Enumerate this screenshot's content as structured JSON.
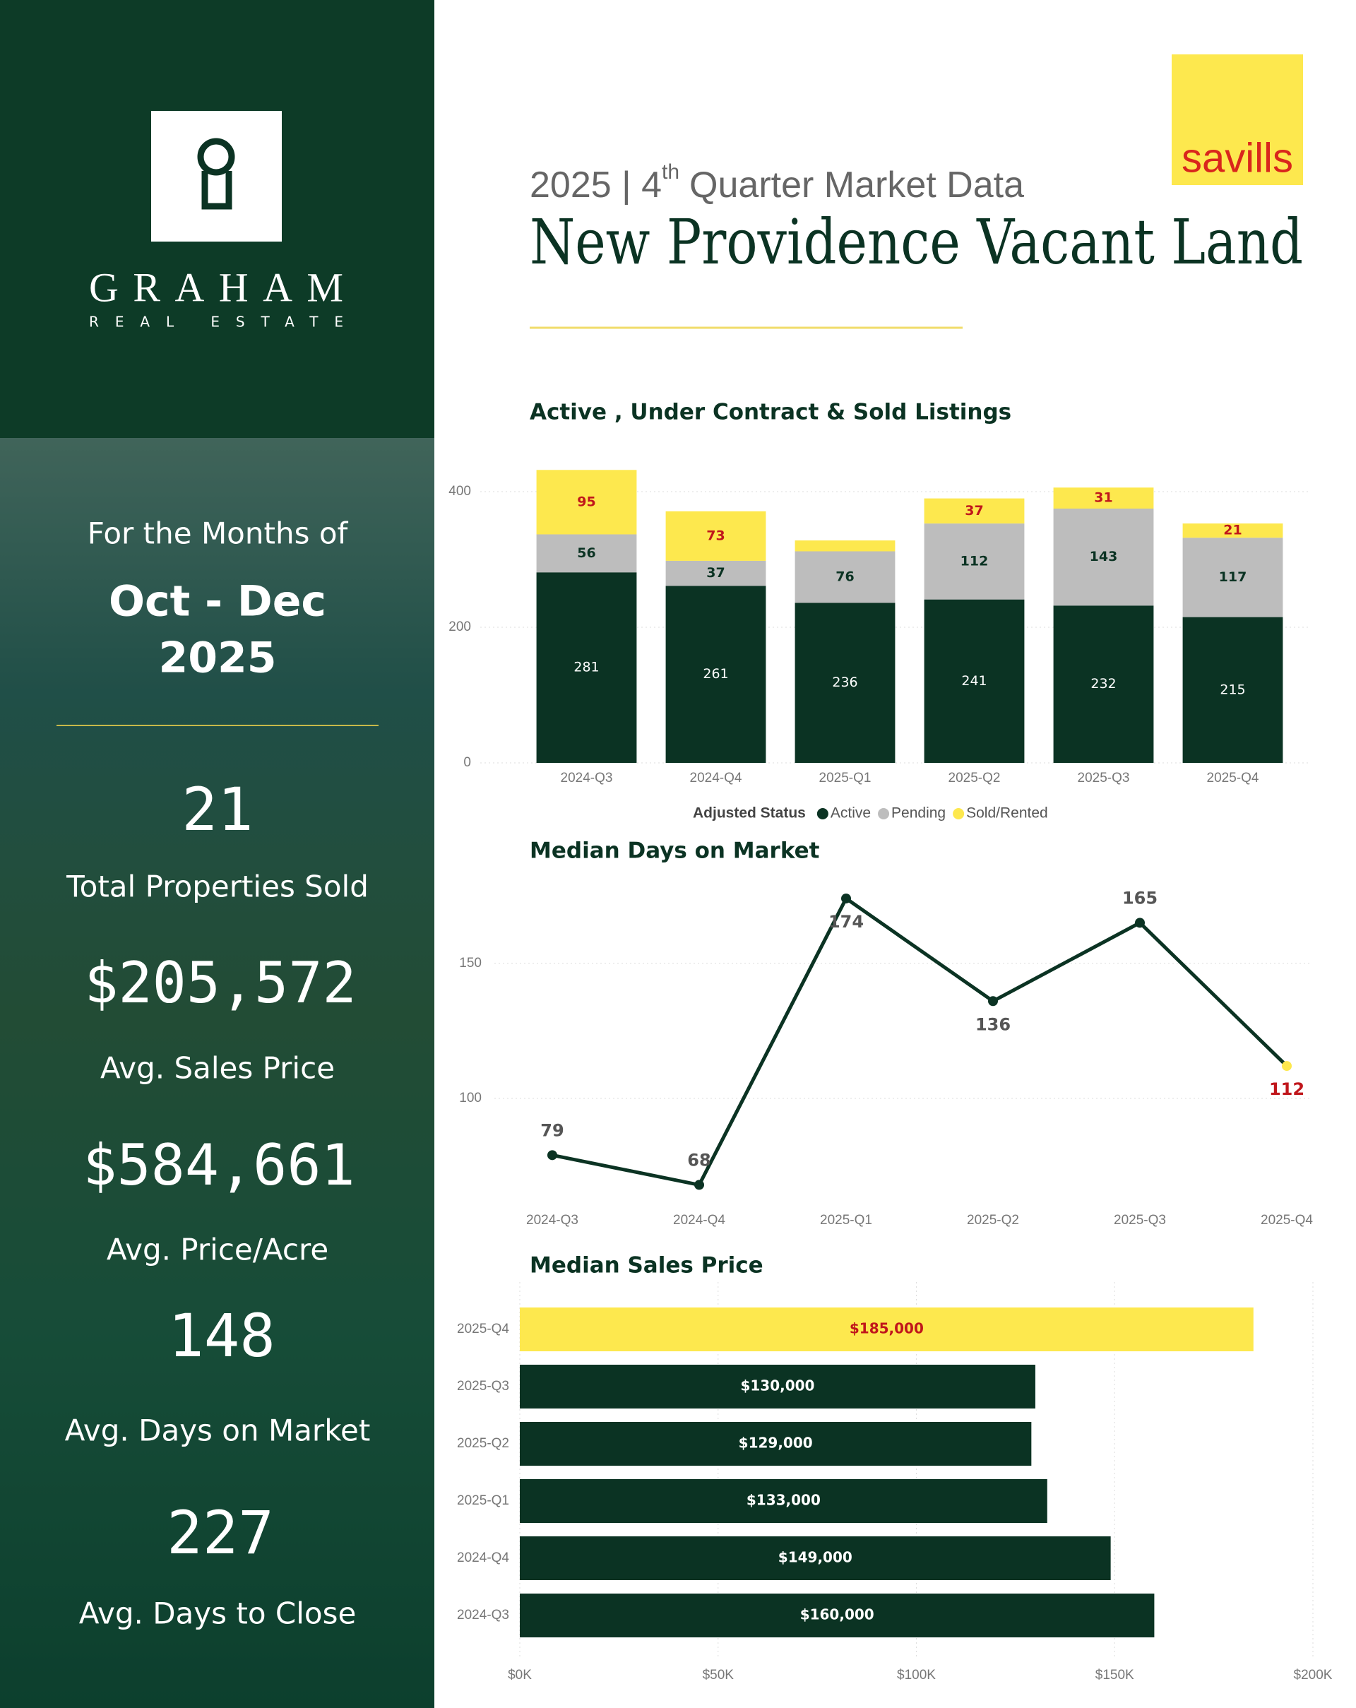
{
  "sidebar": {
    "brand": "GRAHAM",
    "brand_sub": "REAL ESTATE",
    "period_intro": "For the Months of",
    "period": "Oct - Dec",
    "year": "2025",
    "stats": [
      {
        "value": "21",
        "label": "Total Properties Sold"
      },
      {
        "value": "$205,572",
        "label": "Avg. Sales Price"
      },
      {
        "value": "$584,661",
        "label": "Avg. Price/Acre"
      },
      {
        "value": "148",
        "label": "Avg. Days on Market"
      },
      {
        "value": "227",
        "label": "Avg. Days to Close"
      }
    ]
  },
  "header": {
    "logo": "savills",
    "subtitle_start": "2025 | 4",
    "subtitle_sup": "th",
    "subtitle_end": "Quarter Market Data",
    "title": "New Providence Vacant Land"
  },
  "chart_data": [
    {
      "type": "stacked-bar",
      "title": "Active , Under Contract & Sold Listings",
      "categories": [
        "2024-Q3",
        "2024-Q4",
        "2025-Q1",
        "2025-Q2",
        "2025-Q3",
        "2025-Q4"
      ],
      "series": [
        {
          "name": "Active",
          "color": "#0b3323",
          "label_color": "#ffffff",
          "values": [
            281,
            261,
            236,
            241,
            232,
            215
          ]
        },
        {
          "name": "Pending",
          "color": "#bdbdbd",
          "label_color": "#0b3323",
          "values": [
            56,
            37,
            76,
            112,
            143,
            117
          ]
        },
        {
          "name": "Sold/Rented",
          "color": "#fde84e",
          "label_color": "#c0161b",
          "values": [
            95,
            73,
            16,
            37,
            31,
            21
          ],
          "value_labels": [
            "95",
            "73",
            null,
            "37",
            "31",
            "21"
          ]
        }
      ],
      "ylim": [
        0,
        450
      ],
      "yticks": [
        0,
        200,
        400
      ],
      "grid": true,
      "legend_title": "Adjusted Status",
      "legend": "bottom"
    },
    {
      "type": "line",
      "title": "Median Days on Market",
      "categories": [
        "2024-Q3",
        "2024-Q4",
        "2025-Q1",
        "2025-Q2",
        "2025-Q3",
        "2025-Q4"
      ],
      "values": [
        79,
        68,
        174,
        136,
        165,
        112
      ],
      "color": "#0b3323",
      "point_colors": [
        "#0b3323",
        "#0b3323",
        "#0b3323",
        "#0b3323",
        "#0b3323",
        "#fde84e"
      ],
      "label_colors": [
        "#555555",
        "#555555",
        "#555555",
        "#555555",
        "#555555",
        "#c0161b"
      ],
      "ylim": [
        60,
        180
      ],
      "yticks": [
        100,
        150
      ],
      "grid": true
    },
    {
      "type": "hbar",
      "title": "Median Sales Price",
      "categories": [
        "2025-Q4",
        "2025-Q3",
        "2025-Q2",
        "2025-Q1",
        "2024-Q4",
        "2024-Q3"
      ],
      "values": [
        185000,
        130000,
        129000,
        133000,
        149000,
        160000
      ],
      "value_labels": [
        "$185,000",
        "$130,000",
        "$129,000",
        "$133,000",
        "$149,000",
        "$160,000"
      ],
      "colors": [
        "#fde84e",
        "#0b3323",
        "#0b3323",
        "#0b3323",
        "#0b3323",
        "#0b3323"
      ],
      "label_colors": [
        "#c0161b",
        "#ffffff",
        "#ffffff",
        "#ffffff",
        "#ffffff",
        "#ffffff"
      ],
      "xlim": [
        0,
        200000
      ],
      "xticks": [
        {
          "value": 0,
          "label": "$0K"
        },
        {
          "value": 50000,
          "label": "$50K"
        },
        {
          "value": 100000,
          "label": "$100K"
        },
        {
          "value": 150000,
          "label": "$150K"
        },
        {
          "value": 200000,
          "label": "$200K"
        }
      ],
      "grid": true
    }
  ]
}
